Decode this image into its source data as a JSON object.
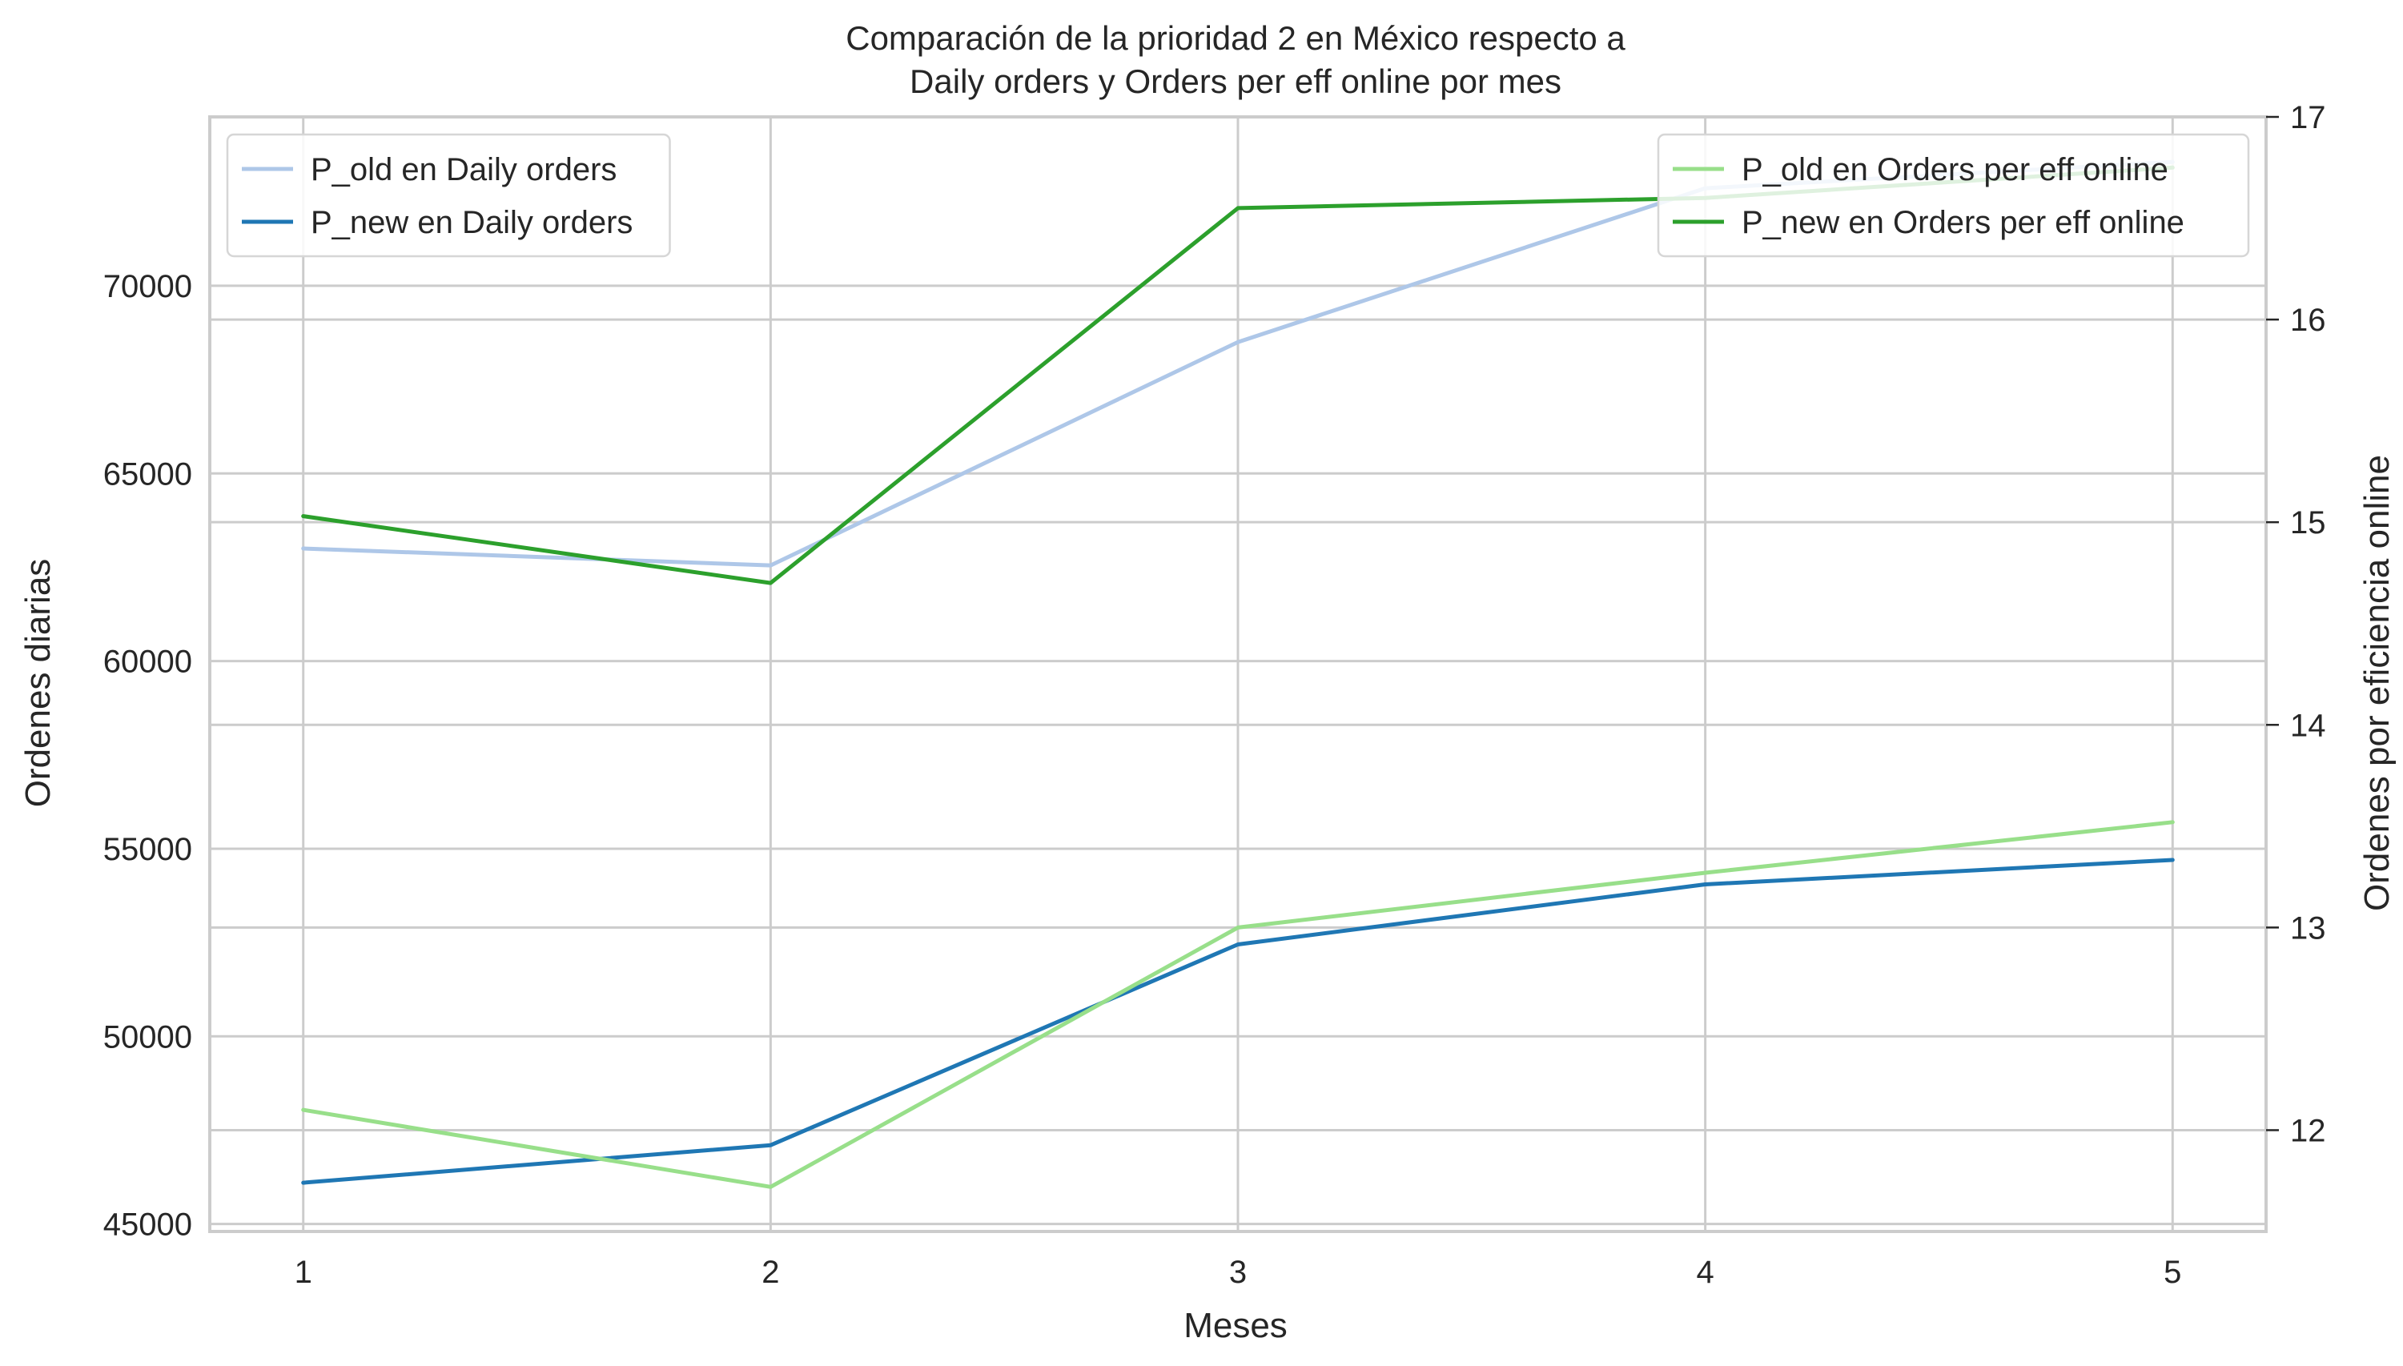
{
  "chart_data": {
    "type": "line",
    "title_line1": "Comparación de la prioridad 2 en México respecto a",
    "title_line2": "Daily orders y Orders per eff online por mes",
    "xlabel": "Meses",
    "ylabel_left": "Ordenes diarias",
    "ylabel_right": "Ordenes por eficiencia online",
    "x": [
      1,
      2,
      3,
      4,
      5
    ],
    "x_ticks": [
      "1",
      "2",
      "3",
      "4",
      "5"
    ],
    "xlim": [
      0.8,
      5.2
    ],
    "ylim_left": [
      44800,
      74500
    ],
    "ylim_right": [
      11.5,
      17.0
    ],
    "y_ticks_left": [
      "45000",
      "50000",
      "55000",
      "60000",
      "65000",
      "70000"
    ],
    "y_ticks_right": [
      "12",
      "13",
      "14",
      "15",
      "16",
      "17"
    ],
    "grid": true,
    "series": [
      {
        "name": "P_old en Daily orders",
        "axis": "left",
        "color": "#aec7e8",
        "values": [
          63000,
          62550,
          68500,
          72600,
          73300
        ]
      },
      {
        "name": "P_new en Daily orders",
        "axis": "left",
        "color": "#1f77b4",
        "values": [
          46100,
          47100,
          52450,
          54050,
          54700
        ]
      },
      {
        "name": "P_old en Orders per eff online",
        "axis": "right",
        "color": "#98df8a",
        "values": [
          12.1,
          11.72,
          13.0,
          13.27,
          13.52
        ]
      },
      {
        "name": "P_new en Orders per eff online",
        "axis": "right",
        "color": "#2ca02c",
        "values": [
          15.03,
          14.7,
          16.55,
          16.6,
          16.75
        ]
      }
    ],
    "legend_left": {
      "placement": "upper-left",
      "entries": [
        "P_old en Daily orders",
        "P_new en Daily orders"
      ]
    },
    "legend_right": {
      "placement": "upper-right",
      "entries": [
        "P_old en Orders per eff online",
        "P_new en Orders per eff online"
      ]
    }
  }
}
